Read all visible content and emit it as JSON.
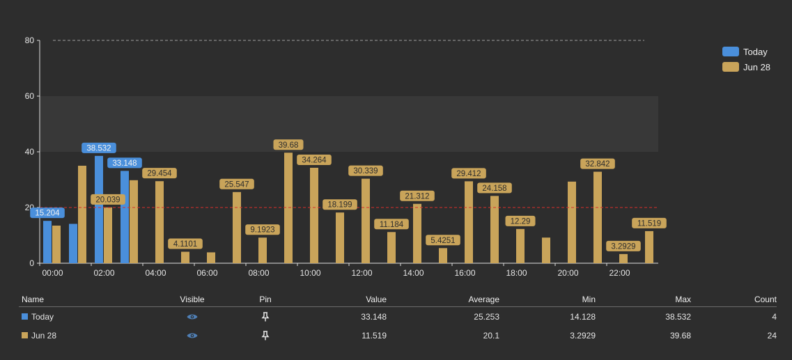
{
  "colors": {
    "today": "#4a8fdb",
    "jun28": "#c9a45a",
    "threshold": "#d9302b",
    "band": "#383838",
    "axis": "#e0e0e0"
  },
  "chart_data": {
    "type": "bar",
    "ylim": [
      0,
      80
    ],
    "yticks": [
      "0",
      "20",
      "40",
      "60",
      "80"
    ],
    "xticks": [
      "00:00",
      "02:00",
      "04:00",
      "06:00",
      "08:00",
      "10:00",
      "12:00",
      "14:00",
      "16:00",
      "18:00",
      "20:00",
      "22:00"
    ],
    "threshold_red": 20,
    "threshold_gray": 80,
    "band": [
      40,
      60
    ],
    "series": [
      {
        "name": "Today",
        "color": "#4a8fdb",
        "values": [
          15.204,
          14.128,
          38.532,
          33.148
        ],
        "labels": [
          "15.204",
          "",
          "38.532",
          "33.148"
        ]
      },
      {
        "name": "Jun 28",
        "color": "#c9a45a",
        "values": [
          13.5,
          35,
          20.039,
          29.8,
          29.454,
          4.1101,
          3.9,
          25.547,
          9.1923,
          39.68,
          34.264,
          18.199,
          30.339,
          11.184,
          21.312,
          5.4251,
          29.412,
          24.158,
          12.29,
          9.2,
          29.3,
          32.842,
          3.2929,
          11.519
        ],
        "labels": [
          "",
          "",
          "20.039",
          "",
          "29.454",
          "4.1101",
          "",
          "25.547",
          "9.1923",
          "39.68",
          "34.264",
          "18.199",
          "30.339",
          "11.184",
          "21.312",
          "5.4251",
          "29.412",
          "24.158",
          "12.29",
          "",
          "",
          "32.842",
          "3.2929",
          "11.519"
        ]
      }
    ]
  },
  "legend": [
    {
      "label": "Today",
      "color": "#4a8fdb"
    },
    {
      "label": "Jun 28",
      "color": "#c9a45a"
    }
  ],
  "table": {
    "headers": {
      "name": "Name",
      "visible": "Visible",
      "pin": "Pin",
      "value": "Value",
      "average": "Average",
      "min": "Min",
      "max": "Max",
      "count": "Count"
    },
    "rows": [
      {
        "name": "Today",
        "color": "#4a8fdb",
        "value": "33.148",
        "average": "25.253",
        "min": "14.128",
        "max": "38.532",
        "count": "4"
      },
      {
        "name": "Jun 28",
        "color": "#c9a45a",
        "value": "11.519",
        "average": "20.1",
        "min": "3.2929",
        "max": "39.68",
        "count": "24"
      }
    ]
  }
}
